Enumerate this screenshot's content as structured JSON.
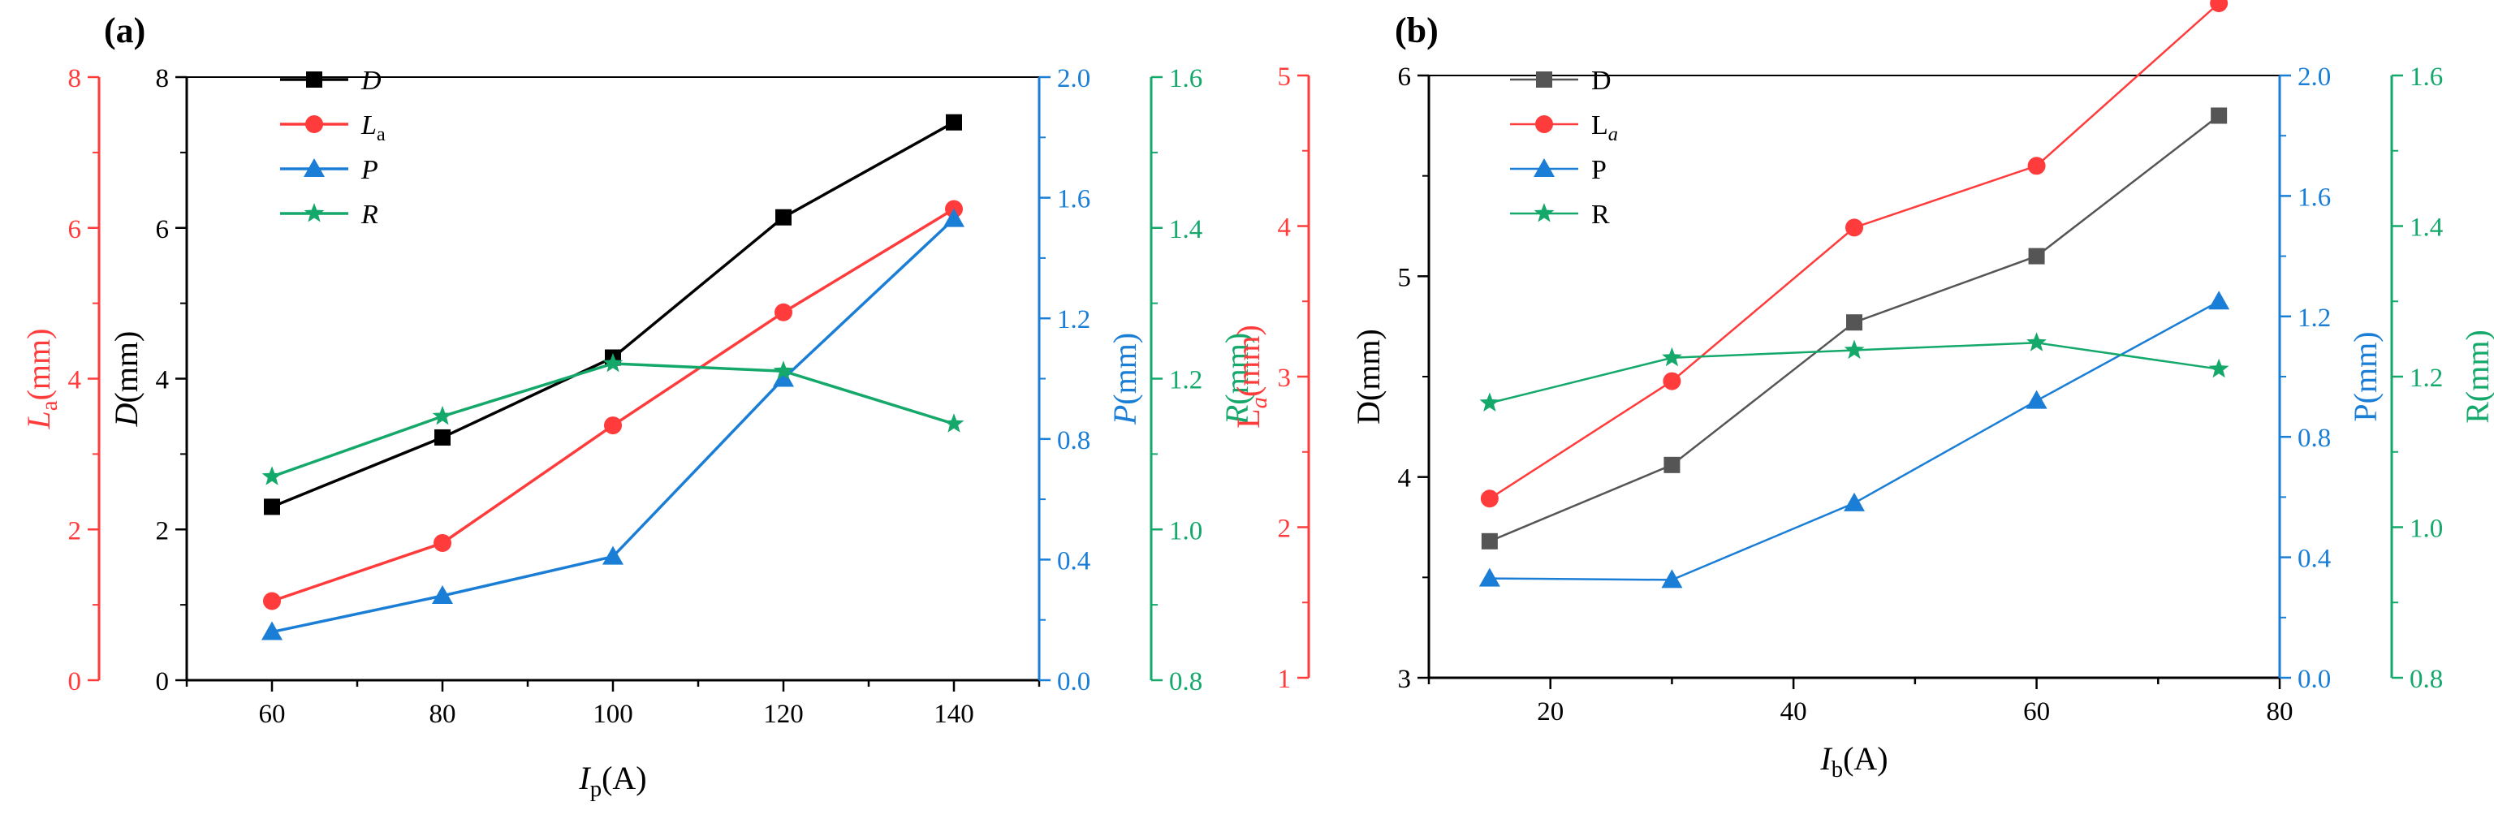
{
  "colors": {
    "D_a": "#000000",
    "D_b": "#555555",
    "La": "#ff3b3b",
    "P": "#1a7ed6",
    "R": "#14a86b"
  },
  "chart_data": [
    {
      "type": "line",
      "panel_label": "(a)",
      "x": [
        60,
        80,
        100,
        120,
        140
      ],
      "xlabel": {
        "main": "I",
        "sub": "p",
        "unit": "(A)"
      },
      "xlim": [
        50,
        150
      ],
      "xticks": [
        60,
        80,
        100,
        120,
        140
      ],
      "series": [
        {
          "key": "D",
          "name": "D",
          "name_main": "D",
          "name_sub": "",
          "marker": "square",
          "axis": "D",
          "values": [
            2.3,
            3.22,
            4.28,
            6.14,
            7.4
          ]
        },
        {
          "key": "La",
          "name": "La",
          "name_main": "L",
          "name_sub": "a",
          "marker": "circle",
          "axis": "La",
          "values": [
            1.05,
            1.82,
            3.38,
            4.88,
            6.25
          ]
        },
        {
          "key": "P",
          "name": "P",
          "name_main": "P",
          "name_sub": "",
          "marker": "triangle",
          "axis": "P",
          "values": [
            0.16,
            0.28,
            0.41,
            1.0,
            1.53
          ]
        },
        {
          "key": "R",
          "name": "R",
          "name_main": "R",
          "name_sub": "",
          "marker": "star",
          "axis": "R",
          "values": [
            1.07,
            1.15,
            1.22,
            1.21,
            1.14
          ]
        }
      ],
      "axes": {
        "D": {
          "label_main": "D",
          "label_sub": "",
          "unit": "(mm)",
          "range": [
            0,
            8
          ],
          "ticks": [
            "0",
            "2",
            "4",
            "6",
            "8"
          ]
        },
        "La": {
          "label_main": "L",
          "label_sub": "a",
          "unit": "(mm)",
          "range": [
            0,
            8
          ],
          "ticks": [
            "0",
            "2",
            "4",
            "6",
            "8"
          ]
        },
        "P": {
          "label_main": "P",
          "label_sub": "",
          "unit": "(mm)",
          "range": [
            0.0,
            2.0
          ],
          "ticks": [
            "0.0",
            "0.4",
            "0.8",
            "1.2",
            "1.6",
            "2.0"
          ]
        },
        "R": {
          "label_main": "R",
          "label_sub": "",
          "unit": "(mm)",
          "range": [
            0.8,
            1.6
          ],
          "ticks": [
            "0.8",
            "1.0",
            "1.2",
            "1.4",
            "1.6"
          ]
        }
      }
    },
    {
      "type": "line",
      "panel_label": "(b)",
      "x": [
        15,
        30,
        45,
        60,
        75
      ],
      "xlabel": {
        "main": "I",
        "sub": "b",
        "unit": "(A)"
      },
      "xlim": [
        10,
        80
      ],
      "xticks": [
        20,
        40,
        60,
        80
      ],
      "series": [
        {
          "key": "D",
          "name": "D",
          "name_main": "D",
          "name_sub": "",
          "marker": "square",
          "axis": "D",
          "values": [
            3.68,
            4.06,
            4.77,
            5.1,
            5.8
          ]
        },
        {
          "key": "La",
          "name": "La",
          "name_main": "L",
          "name_sub": "a",
          "marker": "circle",
          "axis": "La",
          "values": [
            2.19,
            2.97,
            3.99,
            4.4,
            5.48
          ]
        },
        {
          "key": "P",
          "name": "P",
          "name_main": "P",
          "name_sub": "",
          "marker": "triangle",
          "axis": "P",
          "values": [
            0.33,
            0.325,
            0.58,
            0.92,
            1.25
          ]
        },
        {
          "key": "R",
          "name": "R",
          "name_main": "R",
          "name_sub": "",
          "marker": "star",
          "axis": "R",
          "values": [
            1.165,
            1.225,
            1.235,
            1.245,
            1.21
          ]
        }
      ],
      "axes": {
        "D": {
          "label_main": "D",
          "label_sub": "",
          "unit": "(mm)",
          "range": [
            3,
            6
          ],
          "ticks": [
            "3",
            "4",
            "5",
            "6"
          ]
        },
        "La": {
          "label_main": "L",
          "label_sub": "a",
          "unit": "(mm)",
          "range": [
            1,
            5
          ],
          "ticks": [
            "1",
            "2",
            "3",
            "4",
            "5"
          ]
        },
        "P": {
          "label_main": "P",
          "label_sub": "",
          "unit": "(mm)",
          "range": [
            0.0,
            2.0
          ],
          "ticks": [
            "0.0",
            "0.4",
            "0.8",
            "1.2",
            "1.6",
            "2.0"
          ]
        },
        "R": {
          "label_main": "R",
          "label_sub": "",
          "unit": "(mm)",
          "range": [
            0.8,
            1.6
          ],
          "ticks": [
            "0.8",
            "1.0",
            "1.2",
            "1.4",
            "1.6"
          ]
        }
      }
    }
  ]
}
